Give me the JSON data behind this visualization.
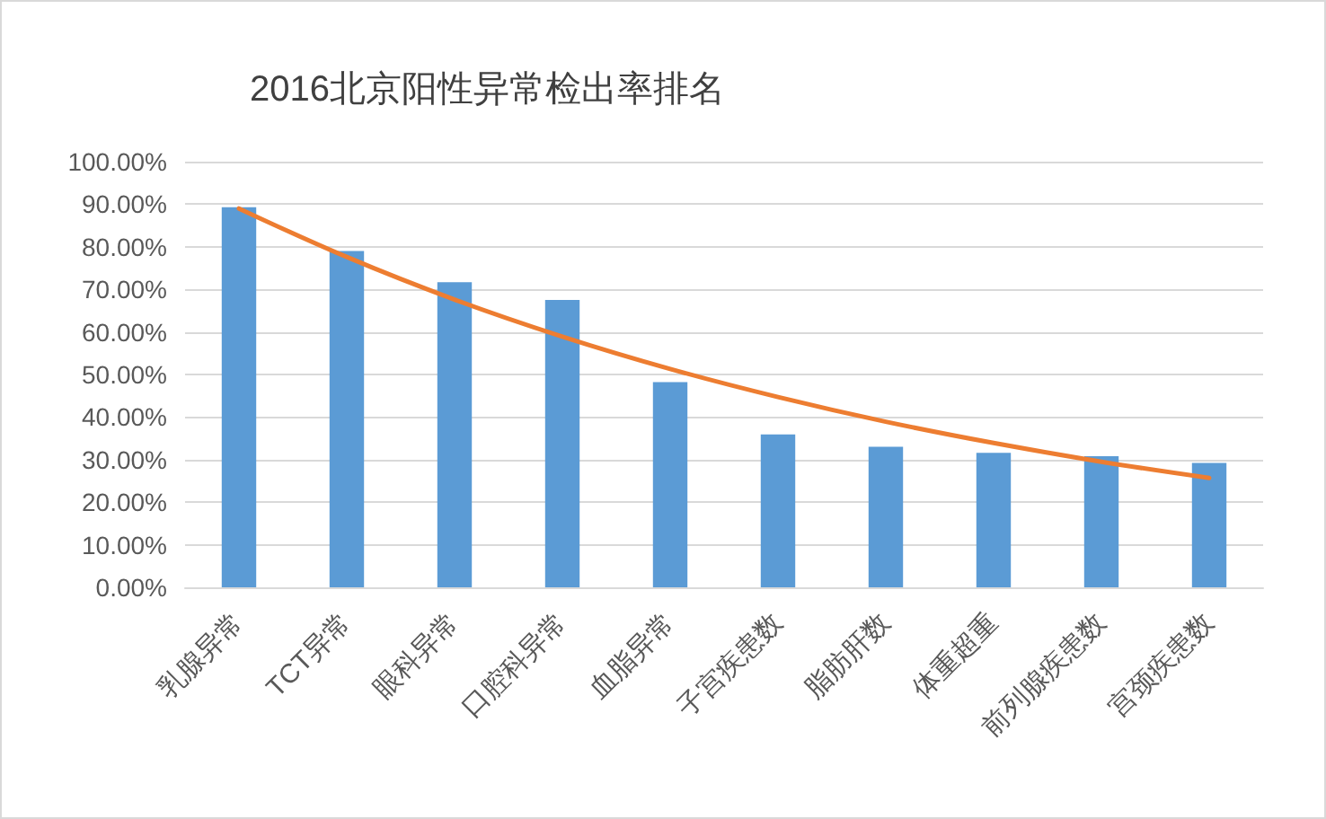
{
  "chart_data": {
    "type": "bar",
    "title": "2016北京阳性异常检出率排名",
    "categories": [
      "乳腺异常",
      "TCT异常",
      "眼科异常",
      "口腔科异常",
      "血脂异常",
      "子宫疾患数",
      "脂肪肝数",
      "体重超重",
      "前列腺疾患数",
      "宫颈疾患数"
    ],
    "series": [
      {
        "color": "#5b9bd5",
        "values": [
          89.3,
          79.0,
          71.7,
          67.5,
          48.2,
          35.9,
          33.0,
          31.6,
          30.8,
          29.2
        ]
      },
      {
        "type": "line",
        "color": "#ed7d31",
        "values": [
          89.0,
          77.6,
          67.6,
          58.9,
          51.3,
          44.7,
          38.9,
          33.9,
          29.5,
          25.7
        ]
      }
    ],
    "ylim": [
      0,
      100
    ],
    "yticks": [
      {
        "value": 0,
        "label": "0.00%"
      },
      {
        "value": 10,
        "label": "10.00%"
      },
      {
        "value": 20,
        "label": "20.00%"
      },
      {
        "value": 30,
        "label": "30.00%"
      },
      {
        "value": 40,
        "label": "40.00%"
      },
      {
        "value": 50,
        "label": "50.00%"
      },
      {
        "value": 60,
        "label": "60.00%"
      },
      {
        "value": 70,
        "label": "70.00%"
      },
      {
        "value": 80,
        "label": "80.00%"
      },
      {
        "value": 90,
        "label": "90.00%"
      },
      {
        "value": 100,
        "label": "100.00%"
      }
    ],
    "grid": "y",
    "marker": "none"
  }
}
